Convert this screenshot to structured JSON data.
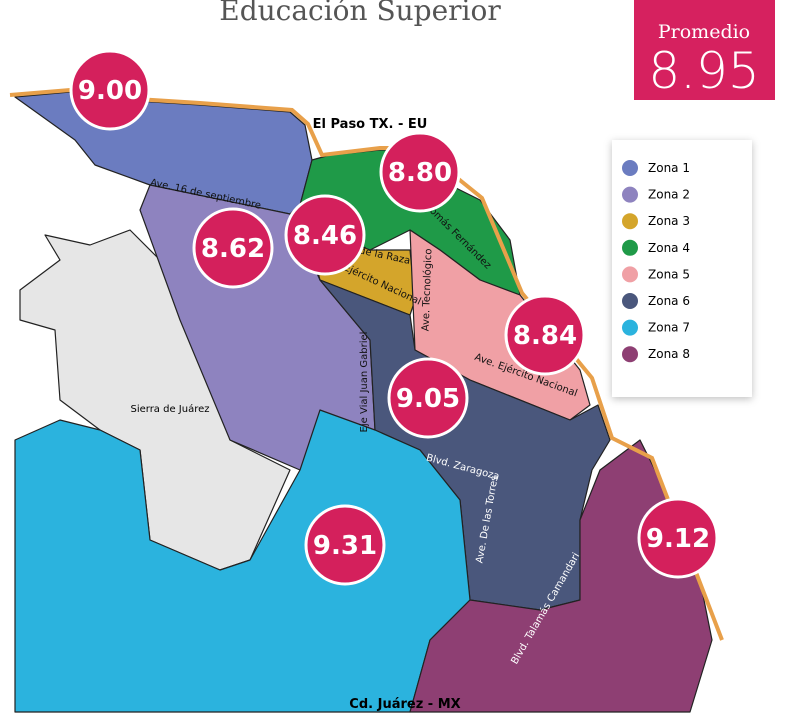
{
  "title": "Educación Superior",
  "average": {
    "label": "Promedio",
    "value": "8.95"
  },
  "places": [
    "El Paso TX. - EU",
    "Cd. Juárez - MX",
    "Sierra de Juárez"
  ],
  "streets": [
    "Ave. 16 de septiembre",
    "Ave. de la Raza",
    "Ave. Tomás Fernández",
    "Ave. Ejército Nacional",
    "Ave. Tecnológico",
    "Eje Vial Juan Gabriel",
    "Ave. Ejército Nacional",
    "Blvd. Zaragoza",
    "Ave. De las Torres",
    "Blvd. Talamás Camandari"
  ],
  "zones": [
    {
      "name": "Zona 1",
      "color": "#6b7cc0",
      "score": "9.00"
    },
    {
      "name": "Zona 2",
      "color": "#8e83bf",
      "score": "8.62"
    },
    {
      "name": "Zona 3",
      "color": "#d4a52b",
      "score": "8.46"
    },
    {
      "name": "Zona 4",
      "color": "#1f9a48",
      "score": "8.80"
    },
    {
      "name": "Zona 5",
      "color": "#f0a0a5",
      "score": "8.84"
    },
    {
      "name": "Zona 6",
      "color": "#4a577c",
      "score": "9.05"
    },
    {
      "name": "Zona 7",
      "color": "#2bb3de",
      "score": "9.31"
    },
    {
      "name": "Zona 8",
      "color": "#8e3f73",
      "score": "9.12"
    }
  ]
}
